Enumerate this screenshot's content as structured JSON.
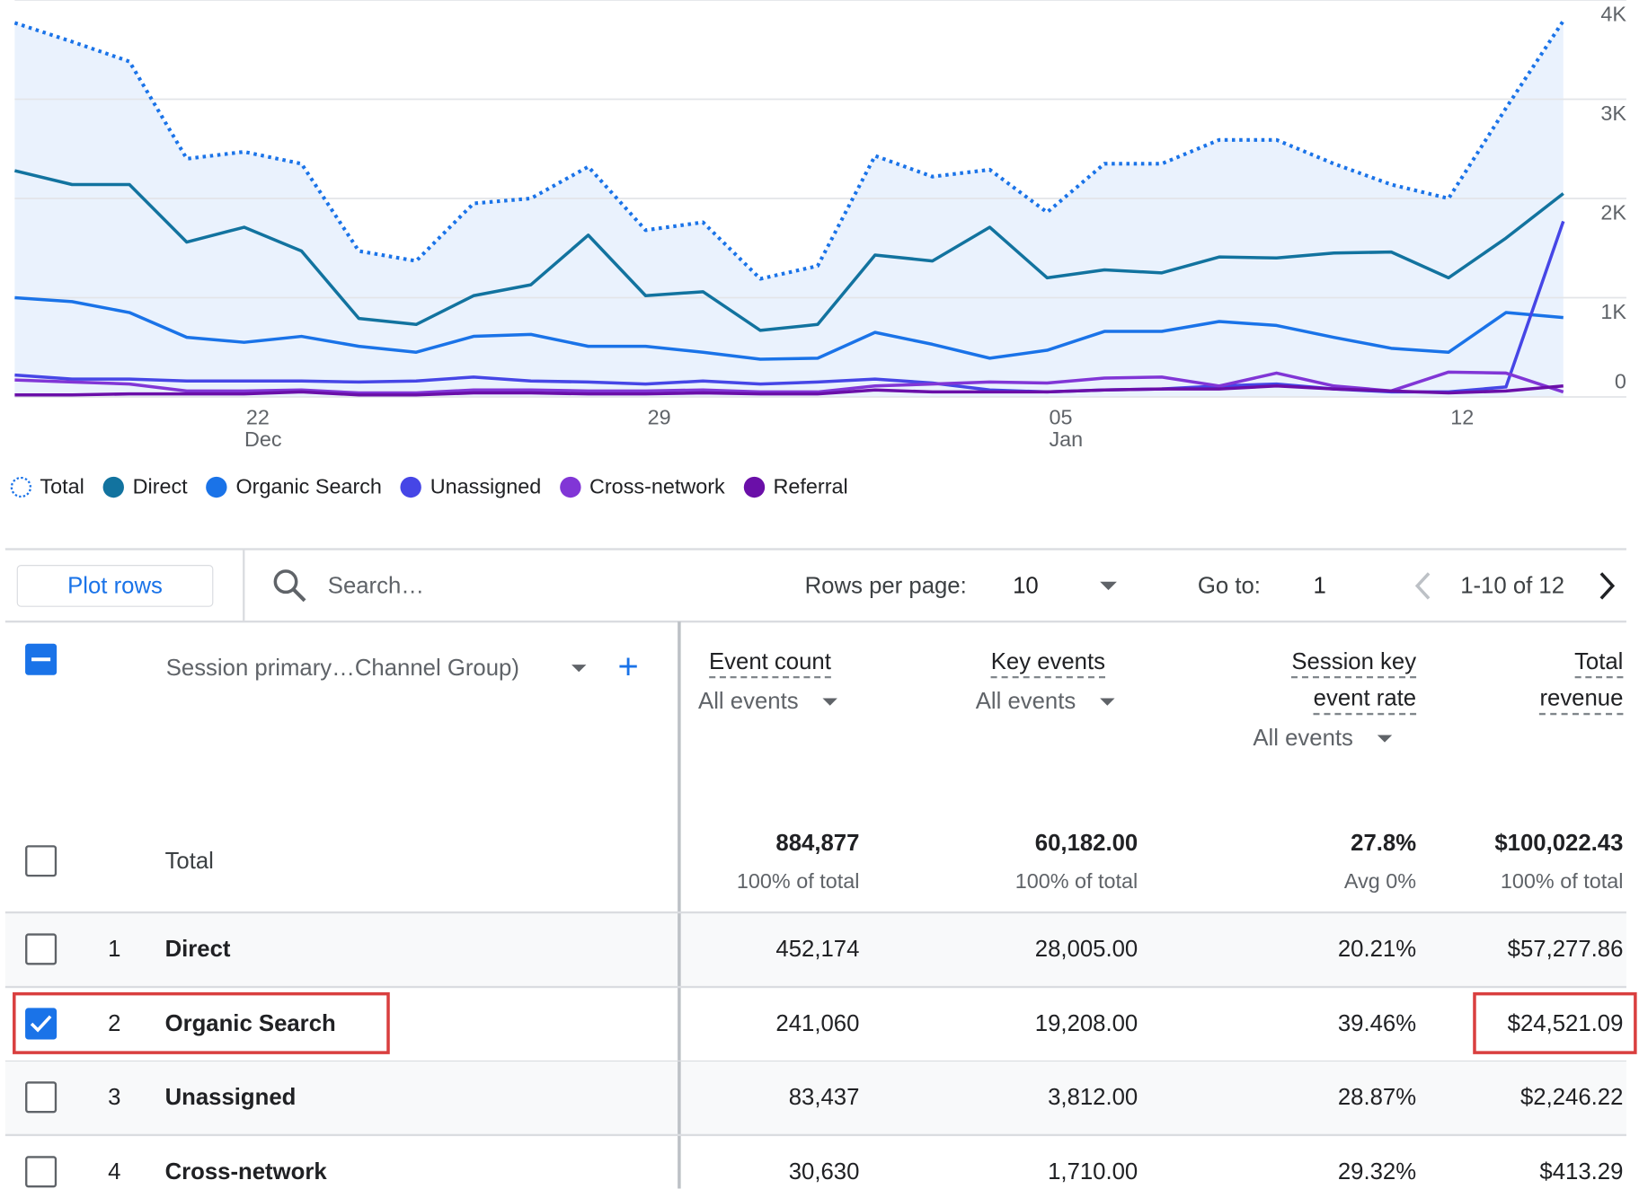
{
  "chart_data": {
    "type": "line",
    "categories": [
      null,
      null,
      null,
      null,
      "22",
      null,
      null,
      null,
      null,
      null,
      null,
      "29",
      null,
      null,
      null,
      null,
      null,
      null,
      "05",
      null,
      null,
      null,
      null,
      null,
      null,
      "12",
      null,
      null
    ],
    "months": [
      null,
      null,
      null,
      null,
      "Dec",
      null,
      null,
      null,
      null,
      null,
      null,
      null,
      null,
      null,
      null,
      null,
      null,
      null,
      "Jan",
      null,
      null,
      null,
      null,
      null,
      null,
      null,
      null,
      null
    ],
    "ylim": [
      0,
      4000
    ],
    "yticks": [
      {
        "value": 0,
        "label": "0"
      },
      {
        "value": 1000,
        "label": "1K"
      },
      {
        "value": 2000,
        "label": "2K"
      },
      {
        "value": 3000,
        "label": "3K"
      },
      {
        "value": 4000,
        "label": "4K"
      }
    ],
    "grid": true,
    "series": [
      {
        "name": "Total",
        "color": "#1a73e8",
        "dash": "dotted",
        "area": true,
        "area_color": "#eaf2fd",
        "values": [
          3770,
          3580,
          3380,
          2400,
          2470,
          2350,
          1470,
          1370,
          1950,
          2000,
          2320,
          1680,
          1760,
          1190,
          1320,
          2430,
          2220,
          2290,
          1860,
          2350,
          2350,
          2590,
          2590,
          2350,
          2140,
          2000,
          2910,
          3790
        ]
      },
      {
        "name": "Direct",
        "color": "#12739f",
        "values": [
          2280,
          2140,
          2140,
          1560,
          1710,
          1470,
          790,
          730,
          1020,
          1130,
          1630,
          1020,
          1060,
          670,
          730,
          1430,
          1370,
          1710,
          1200,
          1280,
          1250,
          1410,
          1400,
          1450,
          1460,
          1200,
          1600,
          2050
        ]
      },
      {
        "name": "Organic Search",
        "color": "#1a73e8",
        "values": [
          1000,
          960,
          850,
          600,
          550,
          610,
          510,
          450,
          610,
          630,
          510,
          510,
          450,
          380,
          390,
          650,
          530,
          390,
          470,
          660,
          660,
          760,
          720,
          600,
          490,
          450,
          850,
          800
        ]
      },
      {
        "name": "Unassigned",
        "color": "#4646e6",
        "values": [
          220,
          180,
          180,
          160,
          160,
          160,
          150,
          160,
          200,
          160,
          150,
          130,
          160,
          130,
          150,
          180,
          140,
          70,
          50,
          70,
          80,
          110,
          130,
          80,
          50,
          50,
          100,
          1770
        ]
      },
      {
        "name": "Cross-network",
        "color": "#8136d6",
        "values": [
          170,
          150,
          130,
          60,
          60,
          70,
          40,
          40,
          70,
          70,
          60,
          60,
          70,
          50,
          50,
          110,
          130,
          150,
          140,
          190,
          200,
          110,
          240,
          110,
          60,
          250,
          240,
          50
        ]
      },
      {
        "name": "Referral",
        "color": "#6a0fa8",
        "values": [
          20,
          20,
          30,
          30,
          30,
          50,
          20,
          20,
          40,
          40,
          30,
          30,
          40,
          30,
          30,
          70,
          50,
          50,
          50,
          70,
          80,
          80,
          110,
          80,
          60,
          40,
          60,
          110
        ]
      }
    ]
  },
  "toolbar": {
    "plot_rows": "Plot rows",
    "search": "Search…",
    "rows_per_page_label": "Rows per page:",
    "rows_per_page": "10",
    "goto_label": "Go to:",
    "goto_value": "1",
    "range": "1-10 of 12"
  },
  "table": {
    "select_all_state": "indeterminate",
    "dimension": "Session primary…Channel Group)",
    "columns": [
      {
        "title": [
          "Event count"
        ],
        "filter": "All events"
      },
      {
        "title": [
          "Key events"
        ],
        "filter": "All events"
      },
      {
        "title": [
          "Session key",
          "event rate"
        ],
        "filter": "All events"
      },
      {
        "title": [
          "Total",
          "revenue"
        ]
      }
    ],
    "totals": {
      "label": "Total",
      "values": [
        "884,877",
        "60,182.00",
        "27.8%",
        "$100,022.43"
      ],
      "notes": [
        "100% of total",
        "100% of total",
        "Avg 0%",
        "100% of total"
      ]
    },
    "rows": [
      {
        "rank": 1,
        "name": "Direct",
        "selected": false,
        "values": [
          "452,174",
          "28,005.00",
          "20.21%",
          "$57,277.86"
        ]
      },
      {
        "rank": 2,
        "name": "Organic Search",
        "selected": true,
        "values": [
          "241,060",
          "19,208.00",
          "39.46%",
          "$24,521.09"
        ]
      },
      {
        "rank": 3,
        "name": "Unassigned",
        "selected": false,
        "values": [
          "83,437",
          "3,812.00",
          "28.87%",
          "$2,246.22"
        ]
      },
      {
        "rank": 4,
        "name": "Cross-network",
        "selected": false,
        "values": [
          "30,630",
          "1,710.00",
          "29.32%",
          "$413.29"
        ]
      }
    ]
  }
}
